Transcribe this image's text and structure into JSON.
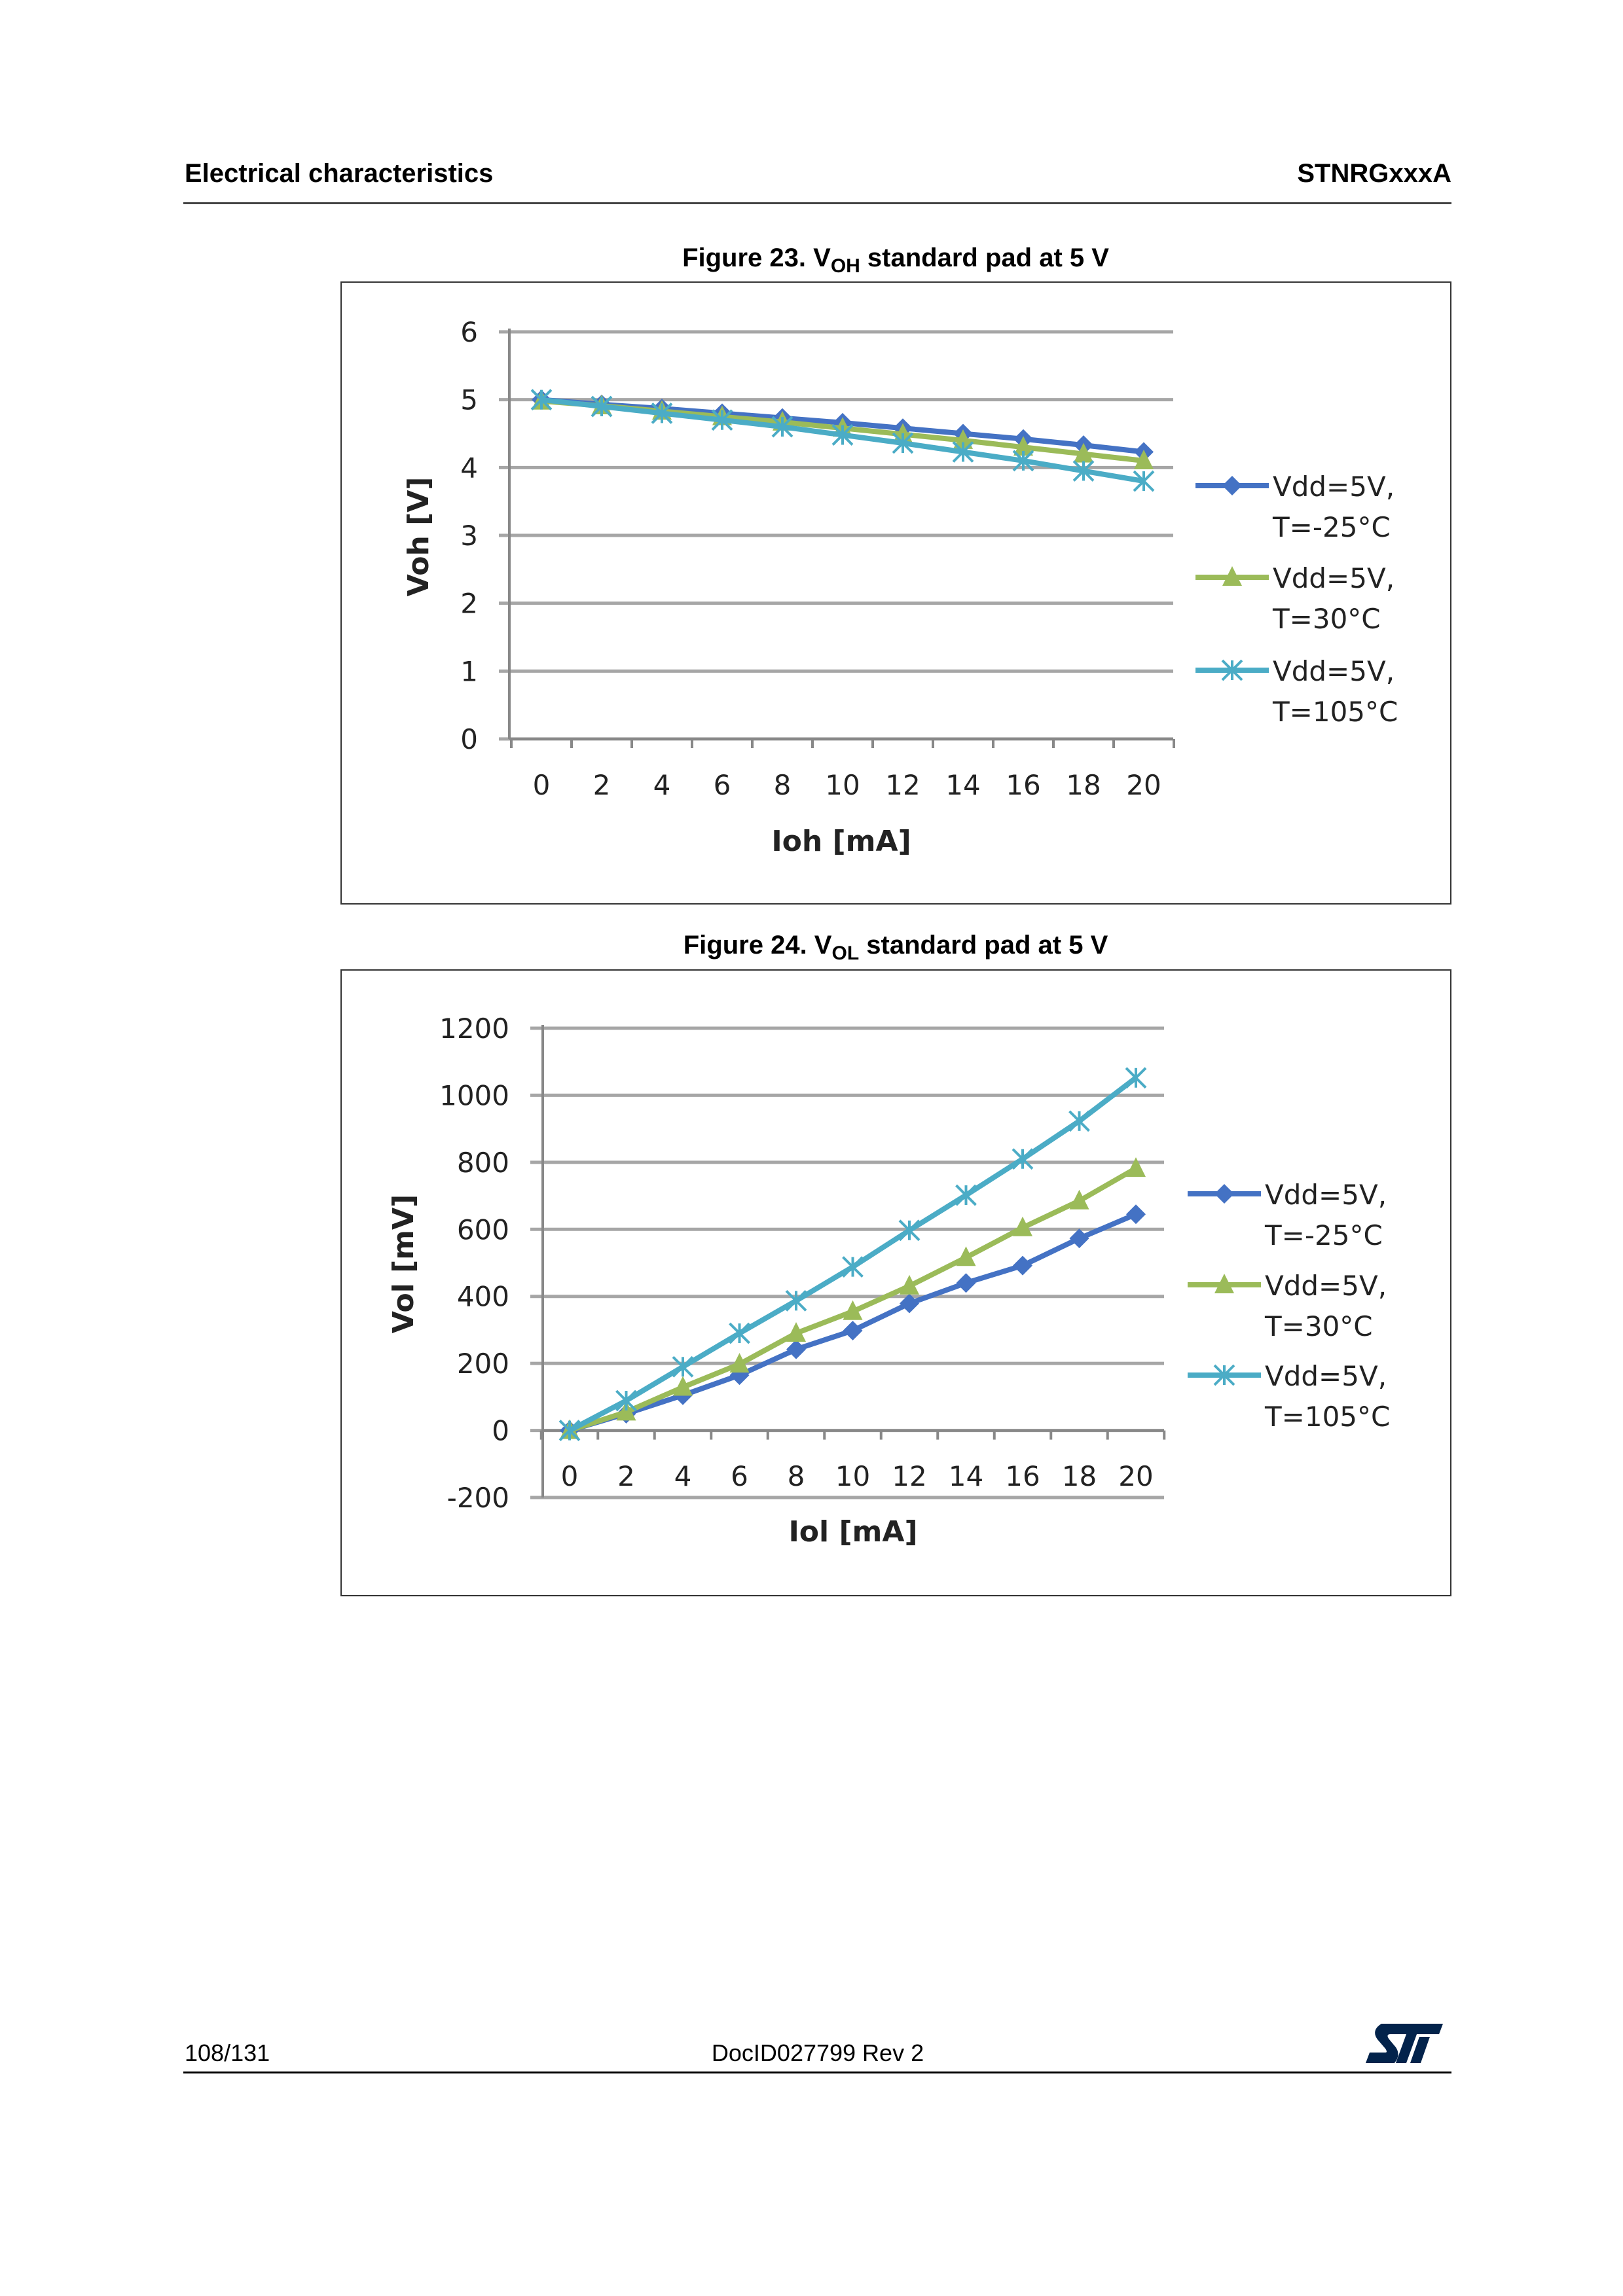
{
  "header": {
    "section": "Electrical characteristics",
    "product": "STNRGxxxA"
  },
  "figures": [
    {
      "caption_prefix": "Figure 23. V",
      "caption_sub": "OH",
      "caption_suffix": " standard pad at 5 V"
    },
    {
      "caption_prefix": "Figure 24. V",
      "caption_sub": "OL",
      "caption_suffix": " standard pad at 5 V"
    }
  ],
  "footer": {
    "page": "108/131",
    "doc_id": "DocID027799 Rev 2",
    "logo": "ST"
  },
  "colors": {
    "series1": "#4472C4",
    "series2": "#9BBB59",
    "series3": "#4BACC6",
    "grid": "#A6A6A6",
    "logo": "#03234B"
  },
  "chart_data": [
    {
      "type": "line",
      "xlabel": "Ioh [mA]",
      "ylabel": "Voh [V]",
      "x": [
        0,
        2,
        4,
        6,
        8,
        10,
        12,
        14,
        16,
        18,
        20
      ],
      "ylim": [
        0,
        6
      ],
      "yticks": [
        0,
        1,
        2,
        3,
        4,
        5,
        6
      ],
      "grid": true,
      "legend": "right",
      "series": [
        {
          "name_line1": "Vdd=5V,",
          "name_line2": "T=-25°C",
          "marker": "diamond",
          "values": [
            5.0,
            4.93,
            4.87,
            4.8,
            4.73,
            4.66,
            4.58,
            4.5,
            4.42,
            4.33,
            4.23
          ]
        },
        {
          "name_line1": "Vdd=5V,",
          "name_line2": "T=30°C",
          "marker": "triangle",
          "values": [
            4.98,
            4.91,
            4.83,
            4.75,
            4.67,
            4.58,
            4.49,
            4.4,
            4.3,
            4.2,
            4.1
          ]
        },
        {
          "name_line1": "Vdd=5V,",
          "name_line2": "T=105°C",
          "marker": "asterisk",
          "values": [
            5.0,
            4.9,
            4.8,
            4.7,
            4.6,
            4.48,
            4.36,
            4.23,
            4.1,
            3.95,
            3.8
          ]
        }
      ]
    },
    {
      "type": "line",
      "xlabel": "Iol [mA]",
      "ylabel": "Vol [mV]",
      "x": [
        0,
        2,
        4,
        6,
        8,
        10,
        12,
        14,
        16,
        18,
        20
      ],
      "ylim": [
        -200,
        1200
      ],
      "yticks": [
        -200,
        0,
        200,
        400,
        600,
        800,
        1000,
        1200
      ],
      "grid": true,
      "legend": "right",
      "series": [
        {
          "name_line1": "Vdd=5V,",
          "name_line2": "T=-25°C",
          "marker": "diamond",
          "values": [
            0,
            50,
            105,
            165,
            242,
            298,
            379,
            440,
            492,
            573,
            645
          ]
        },
        {
          "name_line1": "Vdd=5V,",
          "name_line2": "T=30°C",
          "marker": "triangle",
          "values": [
            0,
            55,
            129,
            198,
            290,
            355,
            431,
            516,
            605,
            685,
            782
          ]
        },
        {
          "name_line1": "Vdd=5V,",
          "name_line2": "T=105°C",
          "marker": "asterisk",
          "values": [
            0,
            89,
            190,
            290,
            387,
            488,
            597,
            702,
            810,
            923,
            1052
          ]
        }
      ]
    }
  ]
}
